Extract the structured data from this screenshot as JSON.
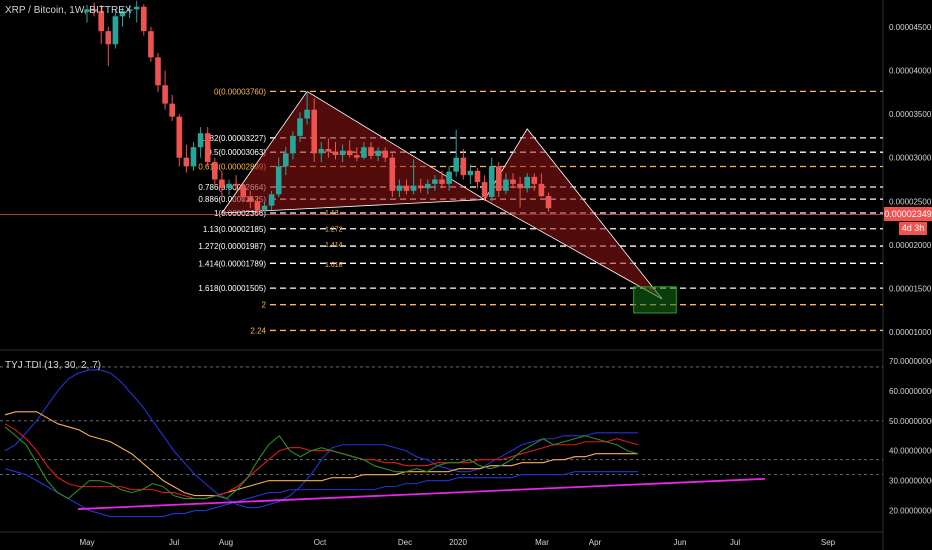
{
  "header": {
    "title": "XRP / Bitcoin, 1W, BITTREX"
  },
  "indicator": {
    "title": "TYJ TDI (13, 30, 2, 7)"
  },
  "price_tag": {
    "price": "0.00002349",
    "countdown": "4d 3h"
  },
  "chart_data": [
    {
      "type": "line",
      "title": "XRP / Bitcoin, 1W, BITTREX",
      "x_ticks": [
        "May",
        "Jul",
        "Aug",
        "Oct",
        "Dec",
        "2020",
        "Mar",
        "Apr",
        "Jun",
        "Jul",
        "Sep"
      ],
      "y_ticks": [
        "0.00004500",
        "0.00004000",
        "0.00003500",
        "0.00003000",
        "0.00002500",
        "0.00002000",
        "0.00001500",
        "0.00001000"
      ],
      "ylim": [
        8.3e-06,
        4.75e-05
      ],
      "current_price": 2.349e-05,
      "fib_levels": [
        {
          "label": "0(0.00003760)",
          "value": 3.76e-05,
          "color": "#ffb74d"
        },
        {
          "label": "0.382(0.00003227)",
          "value": 3.227e-05,
          "color": "#ffffff"
        },
        {
          "label": "0.5(0.00003063)",
          "value": 3.063e-05,
          "color": "#ffffff"
        },
        {
          "label": "0.618(0.00002899)",
          "value": 2.899e-05,
          "color": "#ffb74d"
        },
        {
          "label": "0.786(0.00002664)",
          "value": 2.664e-05,
          "color": "#ffffff"
        },
        {
          "label": "0.886(0.00002525)",
          "value": 2.525e-05,
          "color": "#ffffff"
        },
        {
          "label": "1(0.00002366)",
          "value": 2.366e-05,
          "color": "#ffffff"
        },
        {
          "label": "1.13(0.00002185)",
          "value": 2.185e-05,
          "color": "#ffffff"
        },
        {
          "label": "1.272(0.00001987)",
          "value": 1.987e-05,
          "color": "#ffffff"
        },
        {
          "label": "1.414(0.00001789)",
          "value": 1.789e-05,
          "color": "#ffffff"
        },
        {
          "label": "1.618(0.00001505)",
          "value": 1.505e-05,
          "color": "#ffffff"
        },
        {
          "label": "2",
          "value": 1.315e-05,
          "color": "#ffb74d"
        },
        {
          "label": "2.24",
          "value": 1.02e-05,
          "color": "#ffb74d"
        }
      ],
      "ext_labels": [
        {
          "label": "1.13",
          "value": 2.38e-05
        },
        {
          "label": "1.272",
          "value": 2.19e-05
        },
        {
          "label": "1.414",
          "value": 2.01e-05
        },
        {
          "label": "1.618",
          "value": 1.78e-05
        }
      ],
      "candles": [
        {
          "o": 4.67e-05,
          "h": 4.75e-05,
          "l": 4.55e-05,
          "c": 4.7e-05
        },
        {
          "o": 4.7e-05,
          "h": 4.78e-05,
          "l": 4.62e-05,
          "c": 4.68e-05
        },
        {
          "o": 4.68e-05,
          "h": 4.75e-05,
          "l": 4.3e-05,
          "c": 4.45e-05
        },
        {
          "o": 4.45e-05,
          "h": 4.5e-05,
          "l": 4.05e-05,
          "c": 4.3e-05
        },
        {
          "o": 4.3e-05,
          "h": 4.7e-05,
          "l": 4.25e-05,
          "c": 4.62e-05
        },
        {
          "o": 4.62e-05,
          "h": 4.72e-05,
          "l": 4.5e-05,
          "c": 4.68e-05
        },
        {
          "o": 4.68e-05,
          "h": 4.75e-05,
          "l": 4.6e-05,
          "c": 4.7e-05
        },
        {
          "o": 4.7e-05,
          "h": 4.8e-05,
          "l": 4.55e-05,
          "c": 4.73e-05
        },
        {
          "o": 4.73e-05,
          "h": 4.76e-05,
          "l": 4.4e-05,
          "c": 4.45e-05
        },
        {
          "o": 4.45e-05,
          "h": 4.5e-05,
          "l": 4.1e-05,
          "c": 4.15e-05
        },
        {
          "o": 4.15e-05,
          "h": 4.2e-05,
          "l": 3.75e-05,
          "c": 3.83e-05
        },
        {
          "o": 3.83e-05,
          "h": 4e-05,
          "l": 3.55e-05,
          "c": 3.62e-05
        },
        {
          "o": 3.62e-05,
          "h": 3.72e-05,
          "l": 3.42e-05,
          "c": 3.47e-05
        },
        {
          "o": 3.47e-05,
          "h": 3.5e-05,
          "l": 2.9e-05,
          "c": 3e-05
        },
        {
          "o": 3e-05,
          "h": 3.15e-05,
          "l": 2.83e-05,
          "c": 2.9e-05
        },
        {
          "o": 2.9e-05,
          "h": 3.18e-05,
          "l": 2.85e-05,
          "c": 3.12e-05
        },
        {
          "o": 3.12e-05,
          "h": 3.35e-05,
          "l": 3e-05,
          "c": 3.28e-05
        },
        {
          "o": 3.28e-05,
          "h": 3.35e-05,
          "l": 2.9e-05,
          "c": 2.95e-05
        },
        {
          "o": 2.95e-05,
          "h": 3e-05,
          "l": 2.68e-05,
          "c": 2.75e-05
        },
        {
          "o": 2.75e-05,
          "h": 2.85e-05,
          "l": 2.55e-05,
          "c": 2.65e-05
        },
        {
          "o": 2.65e-05,
          "h": 2.75e-05,
          "l": 2.58e-05,
          "c": 2.7e-05
        },
        {
          "o": 2.7e-05,
          "h": 2.8e-05,
          "l": 2.62e-05,
          "c": 2.68e-05
        },
        {
          "o": 2.68e-05,
          "h": 2.7e-05,
          "l": 2.5e-05,
          "c": 2.55e-05
        },
        {
          "o": 2.55e-05,
          "h": 2.62e-05,
          "l": 2.42e-05,
          "c": 2.5e-05
        },
        {
          "o": 2.5e-05,
          "h": 2.55e-05,
          "l": 2.35e-05,
          "c": 2.4e-05
        },
        {
          "o": 2.4e-05,
          "h": 2.5e-05,
          "l": 2.36e-05,
          "c": 2.45e-05
        },
        {
          "o": 2.45e-05,
          "h": 2.62e-05,
          "l": 2.4e-05,
          "c": 2.58e-05
        },
        {
          "o": 2.58e-05,
          "h": 3e-05,
          "l": 2.55e-05,
          "c": 2.9e-05
        },
        {
          "o": 2.9e-05,
          "h": 3.12e-05,
          "l": 2.8e-05,
          "c": 3.05e-05
        },
        {
          "o": 3.05e-05,
          "h": 3.3e-05,
          "l": 2.98e-05,
          "c": 3.25e-05
        },
        {
          "o": 3.25e-05,
          "h": 3.52e-05,
          "l": 3.18e-05,
          "c": 3.45e-05
        },
        {
          "o": 3.45e-05,
          "h": 3.76e-05,
          "l": 3.38e-05,
          "c": 3.55e-05
        },
        {
          "o": 3.55e-05,
          "h": 3.68e-05,
          "l": 2.95e-05,
          "c": 3.05e-05
        },
        {
          "o": 3.05e-05,
          "h": 3.18e-05,
          "l": 2.95e-05,
          "c": 3.1e-05
        },
        {
          "o": 3.1e-05,
          "h": 3.22e-05,
          "l": 3e-05,
          "c": 3.07e-05
        },
        {
          "o": 3.07e-05,
          "h": 3.18e-05,
          "l": 2.98e-05,
          "c": 3.03e-05
        },
        {
          "o": 3.03e-05,
          "h": 3.15e-05,
          "l": 2.95e-05,
          "c": 3.08e-05
        },
        {
          "o": 3.08e-05,
          "h": 3.2e-05,
          "l": 3e-05,
          "c": 3.03e-05
        },
        {
          "o": 3.03e-05,
          "h": 3.12e-05,
          "l": 2.96e-05,
          "c": 3e-05
        },
        {
          "o": 3e-05,
          "h": 3.18e-05,
          "l": 2.98e-05,
          "c": 3.12e-05
        },
        {
          "o": 3.12e-05,
          "h": 3.18e-05,
          "l": 2.98e-05,
          "c": 3.02e-05
        },
        {
          "o": 3.02e-05,
          "h": 3.12e-05,
          "l": 2.96e-05,
          "c": 3.08e-05
        },
        {
          "o": 3.08e-05,
          "h": 3.12e-05,
          "l": 2.95e-05,
          "c": 3e-05
        },
        {
          "o": 3e-05,
          "h": 3.05e-05,
          "l": 2.55e-05,
          "c": 2.62e-05
        },
        {
          "o": 2.62e-05,
          "h": 2.75e-05,
          "l": 2.55e-05,
          "c": 2.68e-05
        },
        {
          "o": 2.68e-05,
          "h": 2.75e-05,
          "l": 2.58e-05,
          "c": 2.62e-05
        },
        {
          "o": 2.62e-05,
          "h": 2.98e-05,
          "l": 2.58e-05,
          "c": 2.68e-05
        },
        {
          "o": 2.68e-05,
          "h": 2.76e-05,
          "l": 2.6e-05,
          "c": 2.65e-05
        },
        {
          "o": 2.65e-05,
          "h": 2.75e-05,
          "l": 2.58e-05,
          "c": 2.7e-05
        },
        {
          "o": 2.7e-05,
          "h": 2.8e-05,
          "l": 2.62e-05,
          "c": 2.75e-05
        },
        {
          "o": 2.75e-05,
          "h": 2.85e-05,
          "l": 2.65e-05,
          "c": 2.7e-05
        },
        {
          "o": 2.7e-05,
          "h": 2.9e-05,
          "l": 2.62e-05,
          "c": 2.84e-05
        },
        {
          "o": 2.84e-05,
          "h": 3.32e-05,
          "l": 2.78e-05,
          "c": 3e-05
        },
        {
          "o": 3e-05,
          "h": 3.1e-05,
          "l": 2.75e-05,
          "c": 2.8e-05
        },
        {
          "o": 2.8e-05,
          "h": 2.92e-05,
          "l": 2.7e-05,
          "c": 2.85e-05
        },
        {
          "o": 2.85e-05,
          "h": 2.88e-05,
          "l": 2.65e-05,
          "c": 2.72e-05
        },
        {
          "o": 2.72e-05,
          "h": 2.8e-05,
          "l": 2.5e-05,
          "c": 2.55e-05
        },
        {
          "o": 2.55e-05,
          "h": 3e-05,
          "l": 2.5e-05,
          "c": 2.9e-05
        },
        {
          "o": 2.9e-05,
          "h": 2.95e-05,
          "l": 2.55e-05,
          "c": 2.62e-05
        },
        {
          "o": 2.62e-05,
          "h": 2.82e-05,
          "l": 2.58e-05,
          "c": 2.75e-05
        },
        {
          "o": 2.75e-05,
          "h": 2.82e-05,
          "l": 2.65e-05,
          "c": 2.7e-05
        },
        {
          "o": 2.7e-05,
          "h": 2.78e-05,
          "l": 2.43e-05,
          "c": 2.65e-05
        },
        {
          "o": 2.65e-05,
          "h": 2.82e-05,
          "l": 2.6e-05,
          "c": 2.78e-05
        },
        {
          "o": 2.78e-05,
          "h": 2.82e-05,
          "l": 2.62e-05,
          "c": 2.7e-05
        },
        {
          "o": 2.7e-05,
          "h": 2.82e-05,
          "l": 2.55e-05,
          "c": 2.56e-05
        },
        {
          "o": 2.56e-05,
          "h": 2.6e-05,
          "l": 2.38e-05,
          "c": 2.42e-05
        }
      ],
      "harmonic_pattern": {
        "X": {
          "i": 19,
          "v": 2.366e-05
        },
        "A": {
          "i": 31,
          "v": 3.76e-05
        },
        "B": {
          "i": 56,
          "v": 2.52e-05
        },
        "C": {
          "i": 62,
          "v": 3.33e-05
        },
        "D": {
          "i": 81,
          "v": 1.38e-05
        }
      },
      "target_zone": {
        "from_i": 77,
        "to_i": 83,
        "from_v": 1.22e-05,
        "to_v": 1.52e-05
      }
    },
    {
      "type": "line",
      "title": "TYJ TDI (13, 30, 2, 7)",
      "y_ticks": [
        "70.00000000",
        "60.00000000",
        "50.00000000",
        "40.00000000",
        "30.00000000",
        "20.00000000"
      ],
      "ylim": [
        13.5,
        73
      ],
      "hlines": [
        68,
        50,
        37,
        32
      ],
      "series": [
        {
          "color": "#2234d6",
          "values": [
            40,
            42,
            46,
            50,
            55,
            60,
            64,
            66,
            67,
            67,
            66,
            63,
            59,
            55,
            50,
            45,
            40,
            36,
            32,
            29,
            26,
            24,
            22,
            21,
            21,
            22,
            23,
            25,
            28,
            32,
            37,
            41,
            42,
            42,
            42,
            42,
            42,
            41,
            40,
            38,
            37,
            35,
            34,
            33,
            33,
            34,
            36,
            38,
            40,
            42,
            43,
            44,
            44,
            45,
            45,
            45,
            46,
            46,
            46,
            46,
            46
          ]
        },
        {
          "color": "#2234d6",
          "values": [
            34,
            33,
            32,
            30,
            28,
            26,
            24,
            22,
            20,
            19,
            18,
            18,
            18,
            18,
            18,
            18,
            19,
            19,
            20,
            20,
            21,
            22,
            23,
            24,
            25,
            26,
            26,
            27,
            27,
            27,
            27,
            27,
            27,
            27,
            27,
            27,
            28,
            28,
            29,
            29,
            30,
            30,
            30,
            31,
            31,
            31,
            31,
            31,
            31,
            32,
            32,
            32,
            32,
            32,
            33,
            33,
            33,
            33,
            33,
            33,
            33
          ]
        },
        {
          "color": "#f7b050",
          "values": [
            52,
            53,
            53,
            53,
            51,
            49,
            48,
            47,
            45,
            44,
            43,
            41,
            39,
            36,
            33,
            30,
            28,
            26,
            25,
            25,
            25,
            26,
            27,
            28,
            29,
            30,
            30,
            30,
            30,
            30,
            30,
            31,
            31,
            31,
            32,
            32,
            32,
            32,
            33,
            33,
            33,
            33,
            33,
            34,
            34,
            34,
            35,
            35,
            35,
            36,
            36,
            36,
            37,
            37,
            38,
            38,
            39,
            39,
            39,
            39,
            39
          ]
        },
        {
          "color": "#e01b1b",
          "values": [
            49,
            47,
            44,
            40,
            35,
            31,
            29,
            28,
            28,
            28,
            28,
            28,
            27,
            27,
            27,
            26,
            26,
            25,
            24,
            24,
            25,
            26,
            28,
            31,
            34,
            37,
            40,
            41,
            41,
            40,
            40,
            40,
            39,
            38,
            37,
            37,
            36,
            36,
            35,
            35,
            35,
            36,
            36,
            36,
            36,
            37,
            37,
            37,
            38,
            39,
            40,
            41,
            42,
            42,
            42,
            43,
            43,
            43,
            44,
            43,
            42
          ]
        },
        {
          "color": "#2e8b24",
          "values": [
            48,
            45,
            42,
            36,
            30,
            26,
            24,
            27,
            30,
            30,
            29,
            27,
            26,
            27,
            29,
            28,
            25,
            24,
            24,
            24,
            25,
            24,
            27,
            31,
            37,
            42,
            45,
            40,
            38,
            40,
            41,
            40,
            39,
            38,
            37,
            35,
            34,
            33,
            33,
            34,
            33,
            35,
            36,
            36,
            37,
            35,
            34,
            35,
            37,
            40,
            42,
            44,
            42,
            43,
            44,
            45,
            44,
            43,
            42,
            40,
            39
          ]
        },
        {
          "color": "#e628e6",
          "values": [
            20.5,
            30.6
          ]
        }
      ]
    }
  ]
}
